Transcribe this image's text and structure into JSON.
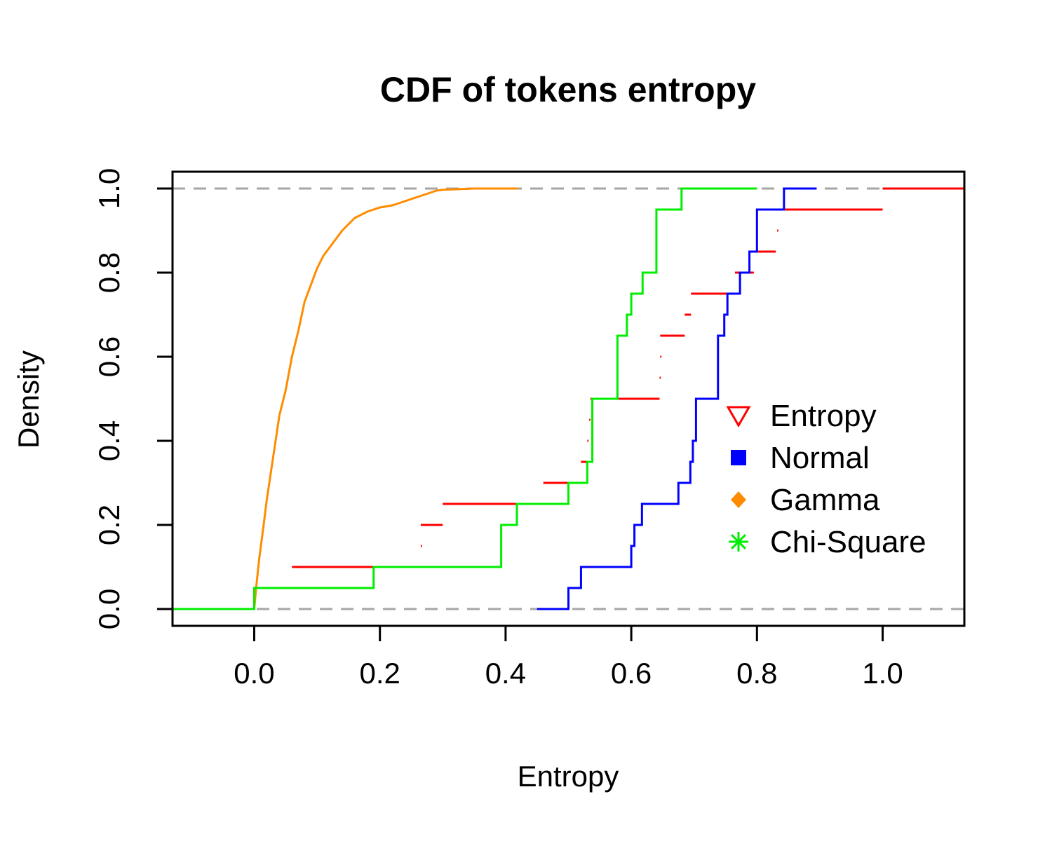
{
  "chart_data": {
    "type": "line",
    "subtype": "empirical-cdf-step",
    "title": "CDF of tokens entropy",
    "xlabel": "Entropy",
    "ylabel": "Density",
    "xlim": [
      -0.13,
      1.13
    ],
    "ylim": [
      -0.04,
      1.04
    ],
    "x_ticks": [
      0.0,
      0.2,
      0.4,
      0.6,
      0.8,
      1.0
    ],
    "x_tick_labels": [
      "0.0",
      "0.2",
      "0.4",
      "0.6",
      "0.8",
      "1.0"
    ],
    "y_ticks": [
      0.0,
      0.2,
      0.4,
      0.6,
      0.8,
      1.0
    ],
    "y_tick_labels": [
      "0.0",
      "0.2",
      "0.4",
      "0.6",
      "0.8",
      "1.0"
    ],
    "grid": false,
    "reference_lines": [
      {
        "y": 0.0,
        "style": "dashed",
        "color": "#a6a6a6"
      },
      {
        "y": 1.0,
        "style": "dashed",
        "color": "#a6a6a6"
      }
    ],
    "legend": {
      "position": "right",
      "entries": [
        {
          "label": "Entropy",
          "marker": "triangle-down-open",
          "color": "#ff0000"
        },
        {
          "label": "Normal",
          "marker": "square-filled",
          "color": "#0000ff"
        },
        {
          "label": "Gamma",
          "marker": "diamond-filled",
          "color": "#ff8c00"
        },
        {
          "label": "Chi-Square",
          "marker": "asterisk",
          "color": "#00ee00"
        }
      ]
    },
    "series": [
      {
        "name": "Entropy",
        "color": "#ff0000",
        "draw": "segments",
        "steps": [
          [
            0.06,
            0.3,
            0.1
          ],
          [
            0.265,
            0.267,
            0.15
          ],
          [
            0.265,
            0.3,
            0.2
          ],
          [
            0.3,
            0.46,
            0.25
          ],
          [
            0.46,
            0.5,
            0.3
          ],
          [
            0.52,
            0.53,
            0.35
          ],
          [
            0.53,
            0.532,
            0.4
          ],
          [
            0.533,
            0.535,
            0.45
          ],
          [
            0.535,
            0.645,
            0.5
          ],
          [
            0.645,
            0.647,
            0.55
          ],
          [
            0.646,
            0.648,
            0.6
          ],
          [
            0.646,
            0.685,
            0.65
          ],
          [
            0.685,
            0.695,
            0.7
          ],
          [
            0.695,
            0.765,
            0.75
          ],
          [
            0.765,
            0.795,
            0.8
          ],
          [
            0.795,
            0.83,
            0.85
          ],
          [
            0.832,
            0.834,
            0.9
          ],
          [
            0.835,
            1.0,
            0.95
          ],
          [
            1.0,
            1.13,
            1.0
          ]
        ]
      },
      {
        "name": "Normal",
        "color": "#0000ff",
        "draw": "step",
        "x": [
          0.45,
          0.5,
          0.52,
          0.6,
          0.605,
          0.617,
          0.675,
          0.694,
          0.698,
          0.703,
          0.738,
          0.748,
          0.753,
          0.773,
          0.788,
          0.8,
          0.843,
          0.895
        ],
        "y": [
          0.0,
          0.05,
          0.1,
          0.15,
          0.2,
          0.25,
          0.3,
          0.35,
          0.4,
          0.5,
          0.65,
          0.7,
          0.75,
          0.8,
          0.85,
          0.95,
          1.0,
          1.0
        ]
      },
      {
        "name": "Gamma",
        "color": "#ff8c00",
        "draw": "curve",
        "x": [
          -0.13,
          0.0,
          0.003,
          0.008,
          0.015,
          0.02,
          0.03,
          0.04,
          0.05,
          0.06,
          0.07,
          0.08,
          0.09,
          0.1,
          0.11,
          0.12,
          0.14,
          0.16,
          0.18,
          0.2,
          0.22,
          0.24,
          0.26,
          0.28,
          0.29,
          0.3,
          0.35,
          0.42
        ],
        "y": [
          0.0,
          0.0,
          0.05,
          0.12,
          0.2,
          0.26,
          0.36,
          0.46,
          0.52,
          0.6,
          0.66,
          0.73,
          0.77,
          0.81,
          0.84,
          0.86,
          0.9,
          0.93,
          0.945,
          0.955,
          0.96,
          0.97,
          0.98,
          0.99,
          0.995,
          0.997,
          1.0,
          1.0
        ]
      },
      {
        "name": "Chi-Square",
        "color": "#00ee00",
        "draw": "step",
        "x": [
          -0.13,
          0.0,
          0.19,
          0.393,
          0.418,
          0.5,
          0.53,
          0.538,
          0.578,
          0.593,
          0.6,
          0.618,
          0.64,
          0.68,
          0.8
        ],
        "y": [
          0.0,
          0.05,
          0.1,
          0.2,
          0.25,
          0.3,
          0.35,
          0.5,
          0.65,
          0.7,
          0.75,
          0.8,
          0.95,
          1.0,
          1.0
        ]
      }
    ]
  }
}
